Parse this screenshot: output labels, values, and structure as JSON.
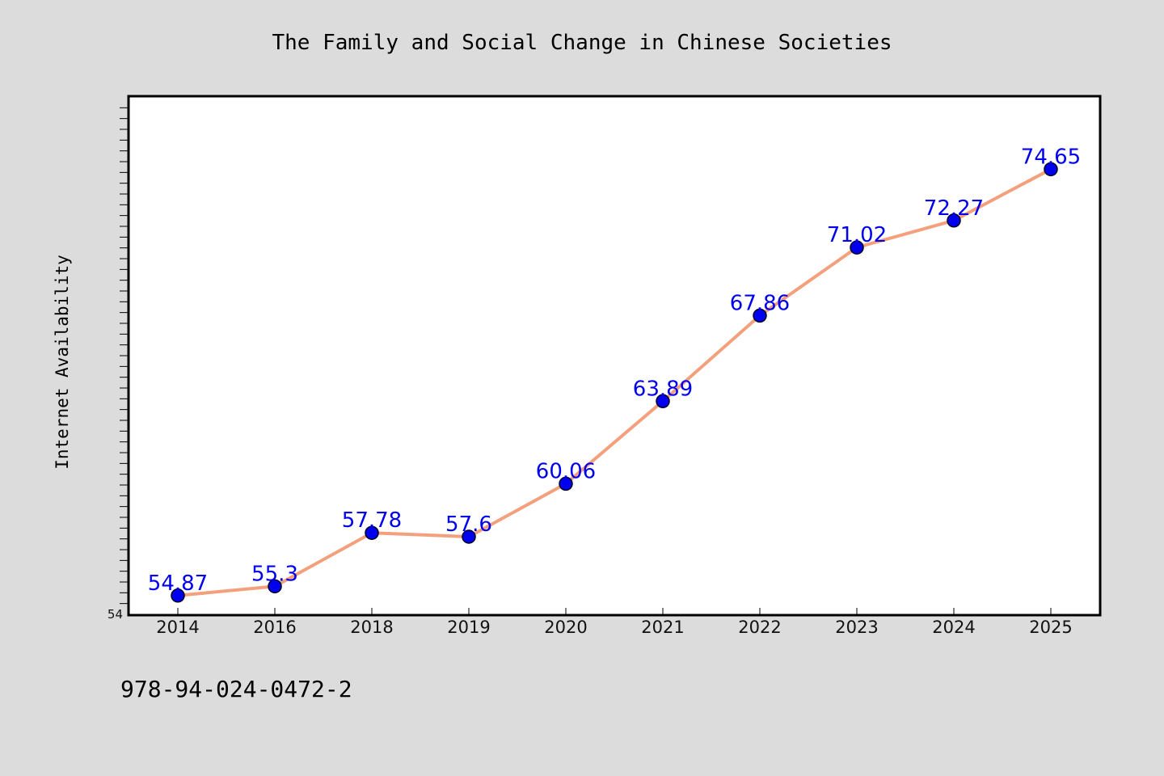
{
  "chart_data": {
    "type": "line",
    "title": "The Family and Social Change in Chinese Societies",
    "ylabel": "Internet Availability",
    "xlabel": "",
    "categories": [
      "2014",
      "2016",
      "2018",
      "2019",
      "2020",
      "2021",
      "2022",
      "2023",
      "2024",
      "2025"
    ],
    "series": [
      {
        "values": [
          54.87,
          55.3,
          57.78,
          57.6,
          60.06,
          63.89,
          67.86,
          71.02,
          72.27,
          74.65
        ],
        "labels": [
          "54.87",
          "55.3",
          "57.78",
          "57.6",
          "60.06",
          "63.89",
          "67.86",
          "71.02",
          "72.27",
          "74.65"
        ]
      }
    ],
    "ylim": [
      54,
      78
    ],
    "y_tick_labels": [
      "54"
    ],
    "grid": false,
    "line_color": "#f4a07c",
    "marker_color": "#0000ee",
    "label_color": "#0000ee"
  },
  "footer": {
    "isbn": "978-94-024-0472-2"
  }
}
